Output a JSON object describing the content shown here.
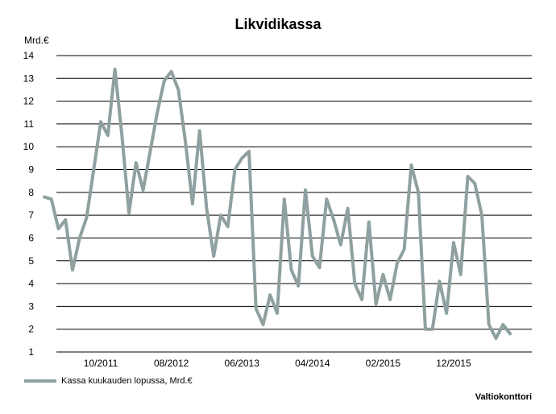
{
  "chart_data": {
    "type": "line",
    "title": "Likvidikassa",
    "ylabel": "Mrd.€",
    "xlabel": "",
    "ylim": [
      1,
      14
    ],
    "yticks": [
      1,
      2,
      3,
      4,
      5,
      6,
      7,
      8,
      9,
      10,
      11,
      12,
      13,
      14
    ],
    "grid": true,
    "legend_position": "bottom-left",
    "x_tick_labels": [
      {
        "index": 8,
        "label": "10/2011"
      },
      {
        "index": 18,
        "label": "08/2012"
      },
      {
        "index": 28,
        "label": "06/2013"
      },
      {
        "index": 38,
        "label": "04/2014"
      },
      {
        "index": 48,
        "label": "02/2015"
      },
      {
        "index": 58,
        "label": "12/2015"
      }
    ],
    "series": [
      {
        "name": "Kassa kuukauden lopussa, Mrd.€",
        "color": "#8fa0a0",
        "values": [
          7.8,
          7.7,
          6.4,
          6.8,
          4.6,
          6.0,
          6.9,
          9.0,
          11.1,
          10.5,
          13.4,
          10.5,
          7.1,
          9.3,
          8.1,
          9.8,
          11.5,
          12.9,
          13.3,
          12.5,
          10.2,
          7.5,
          10.7,
          7.3,
          5.2,
          7.0,
          6.5,
          9.0,
          9.5,
          9.8,
          2.9,
          2.2,
          3.5,
          2.7,
          7.7,
          4.6,
          3.9,
          8.1,
          5.2,
          4.7,
          7.7,
          6.8,
          5.7,
          7.3,
          4.0,
          3.3,
          6.7,
          3.1,
          4.4,
          3.3,
          4.9,
          5.5,
          9.2,
          8.0,
          2.0,
          2.0,
          4.1,
          2.7,
          5.8,
          4.4,
          8.7,
          8.4,
          7.0,
          2.2,
          1.6,
          2.2,
          1.8
        ]
      }
    ]
  },
  "footer": {
    "source": "Valtiokonttori"
  }
}
